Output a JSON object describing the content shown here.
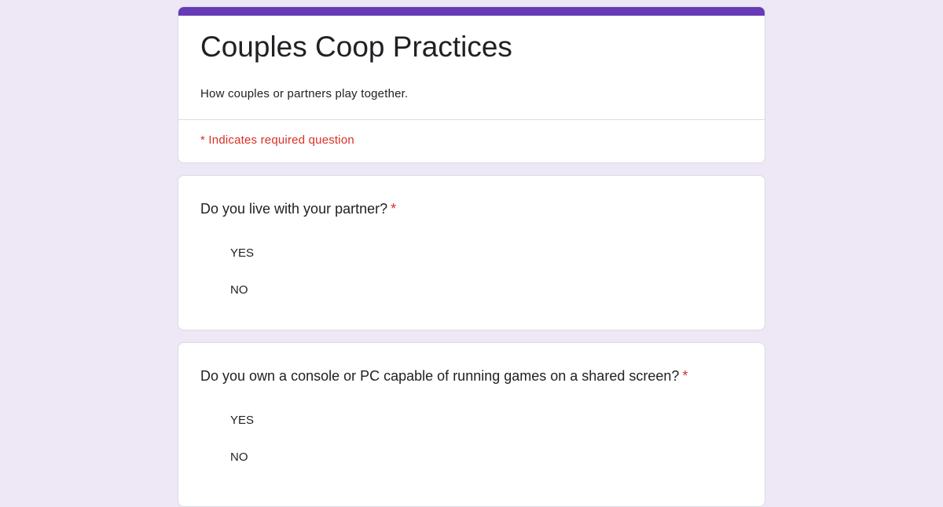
{
  "form": {
    "title": "Couples Coop Practices",
    "description": "How couples or partners play together.",
    "required_note": "* Indicates required question",
    "accent_color": "#673ab7",
    "required_color": "#d93025"
  },
  "questions": [
    {
      "title": "Do you live with your partner?",
      "required_mark": "*",
      "options": [
        "YES",
        "NO"
      ]
    },
    {
      "title": "Do you own a console or PC capable of running games on a shared screen?",
      "required_mark": "*",
      "options": [
        "YES",
        "NO"
      ]
    }
  ]
}
